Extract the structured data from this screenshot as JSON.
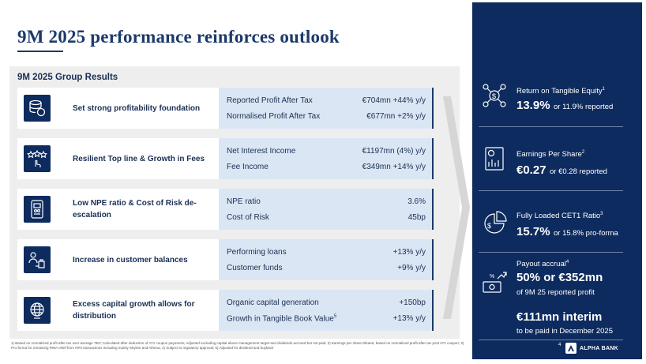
{
  "title": "9M 2025 performance reinforces outlook",
  "section_title": "9M 2025 Group Results",
  "rows": [
    {
      "label": "Set strong profitability foundation",
      "icon": "database-coin-icon",
      "metrics": [
        {
          "name": "Reported Profit After Tax",
          "value": "€704mn +44% y/y"
        },
        {
          "name": "Normalised Profit After Tax",
          "value": "€677mn   +2% y/y"
        }
      ]
    },
    {
      "label": "Resilient Top line & Growth in Fees",
      "icon": "stars-rating-icon",
      "metrics": [
        {
          "name": "Net Interest Income",
          "value": "€1197mn  (4%) y/y"
        },
        {
          "name": "Fee Income",
          "value": "€349mn +14% y/y"
        }
      ]
    },
    {
      "label": "Low NPE ratio & Cost of Risk de-escalation",
      "icon": "phone-chart-icon",
      "metrics": [
        {
          "name": "NPE ratio",
          "value": "3.6%"
        },
        {
          "name": "Cost of Risk",
          "value": "45bp"
        }
      ]
    },
    {
      "label": "Increase in customer balances",
      "icon": "customers-bags-icon",
      "metrics": [
        {
          "name": "Performing loans",
          "value": "+13% y/y"
        },
        {
          "name": "Customer funds",
          "value": "+9% y/y"
        }
      ]
    },
    {
      "label": "Excess capital growth allows for distribution",
      "icon": "globe-icon",
      "metrics": [
        {
          "name": "Organic capital generation",
          "value": "+150bp"
        },
        {
          "name": "Growth in Tangible Book Value",
          "sup": "5",
          "value": "+13% y/y"
        }
      ]
    }
  ],
  "kpis": {
    "rote": {
      "label": "Return on Tangible Equity",
      "sup": "1",
      "value": "13.9%",
      "note": "or 11.9% reported"
    },
    "eps": {
      "label": "Earnings Per Share",
      "sup": "2",
      "value": "€0.27",
      "note": "or €0.28 reported"
    },
    "cet1": {
      "label": "Fully Loaded CET1 Ratio",
      "sup": "3",
      "value": "15.7%",
      "note": "or 15.8% pro-forma"
    },
    "payout": {
      "label": "Payout accrual",
      "sup": "4",
      "value": "50% or €352mn",
      "note": "of 9M 25 reported profit",
      "interim_value": "€111mn interim",
      "interim_note": "to be paid in December 2025"
    }
  },
  "footnote": "1) Based on normalized profit after tax over average TBV; Calculated after deduction of AT1 coupon payments; Adjusted excluding capital above management target and dividends accrued but not paid; 2) Earnings per share Diluted, based on normalized profit after tax post AT1 coupon; 3) Pro-forma for remaining RWA relief from NPA transactions including mainly Skyline and Athena; 4) Subject to regulatory approval; 5) Adjusted for dividend and buyback",
  "page_number": "4",
  "brand": "ALPHA BANK",
  "colors": {
    "navy": "#0d2b5e",
    "light_blue": "#dbe6f4",
    "panel_gray": "#eeeeee"
  }
}
